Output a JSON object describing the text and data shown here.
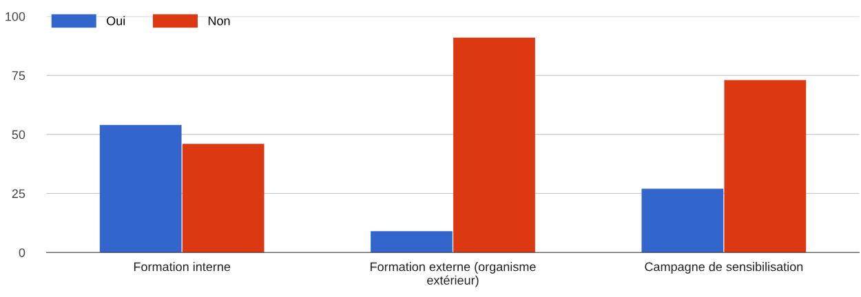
{
  "chart_data": {
    "type": "bar",
    "categories": [
      "Formation interne",
      "Formation externe (organisme extérieur)",
      "Campagne de sensibilisation"
    ],
    "series": [
      {
        "name": "Oui",
        "color": "#3366cc",
        "values": [
          54,
          9,
          27
        ]
      },
      {
        "name": "Non",
        "color": "#dc3912",
        "values": [
          46,
          91,
          73
        ]
      }
    ],
    "ylim": [
      0,
      100
    ],
    "yticks": [
      0,
      25,
      50,
      75,
      100
    ],
    "grid": "y",
    "legend": "top left"
  }
}
